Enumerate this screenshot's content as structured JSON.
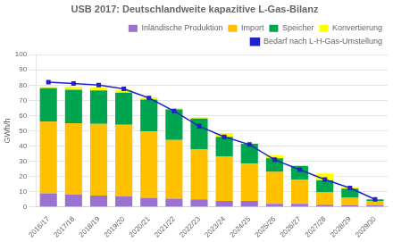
{
  "chart_data": {
    "type": "bar",
    "title": "USB 2017: Deutschlandweite kapazitive L-Gas-Bilanz",
    "ylabel": "GWh/h",
    "categories": [
      "2016/17",
      "2017/18",
      "2018/19",
      "2019/20",
      "2020/21",
      "2021/22",
      "2022/23",
      "2023/24",
      "2024/25",
      "2025/26",
      "2026/27",
      "2027/28",
      "2028/29",
      "2029/30"
    ],
    "stacked": true,
    "series": [
      {
        "name": "Inländische Produktion",
        "color": "#9B72CF",
        "values": [
          9,
          8,
          7.5,
          7,
          6,
          5.5,
          5,
          4,
          4,
          2,
          2,
          1.5,
          1,
          1
        ]
      },
      {
        "name": "Import",
        "color": "#FFC000",
        "values": [
          47,
          47,
          47,
          47,
          43.5,
          38.5,
          33,
          29,
          24.5,
          21,
          16,
          8,
          5,
          3
        ]
      },
      {
        "name": "Speicher",
        "color": "#00A550",
        "values": [
          22,
          22,
          22,
          21,
          21,
          20,
          20,
          13,
          13,
          9,
          9,
          8,
          6,
          1
        ]
      },
      {
        "name": "Konvertierung",
        "color": "#FFFF00",
        "values": [
          1,
          2,
          2,
          2,
          1.5,
          1,
          1,
          2.5,
          0,
          2,
          0,
          4.5,
          1,
          0
        ]
      },
      {
        "name": "Bedarf nach L-H-Gas-Umstellung",
        "color": "#2222CC",
        "type": "line",
        "marker": "square",
        "values": [
          82,
          81,
          80,
          77.5,
          71.5,
          63,
          53,
          46,
          41,
          31,
          24.5,
          18,
          12.5,
          5
        ]
      }
    ],
    "ylim": [
      0,
      100
    ],
    "yticks": [
      0,
      10,
      20,
      30,
      40,
      50,
      60,
      70,
      80,
      90,
      100
    ],
    "grid": true,
    "legend": "upper right"
  }
}
